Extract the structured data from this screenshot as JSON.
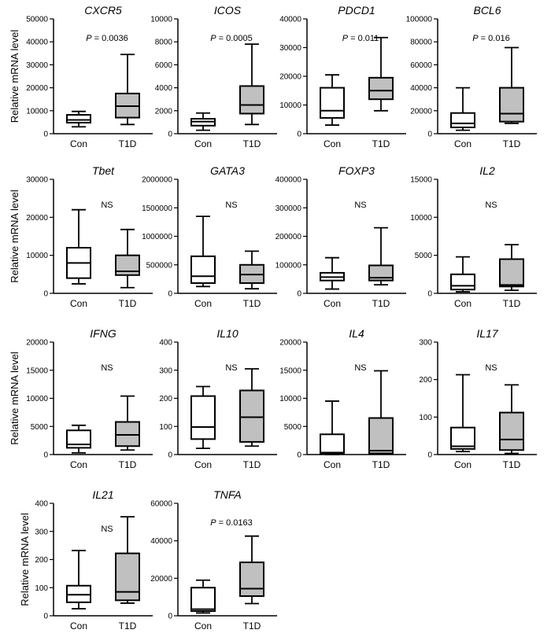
{
  "figure": {
    "ylabel": "Relative mRNA level",
    "colors": {
      "con_fill": "#ffffff",
      "t1d_fill": "#c0c0c0",
      "stroke": "#000000"
    }
  },
  "chart_data": [
    {
      "type": "boxplot",
      "title": "CXCR5",
      "categories": [
        "Con",
        "T1D"
      ],
      "ylim": [
        0,
        50000
      ],
      "yticks": [
        "0",
        "10000",
        "20000",
        "30000",
        "40000",
        "50000"
      ],
      "annotation": "P = 0.0036",
      "series": [
        {
          "name": "Con",
          "min": 3000,
          "q1": 4800,
          "median": 6000,
          "q3": 8200,
          "max": 9700
        },
        {
          "name": "T1D",
          "min": 4000,
          "q1": 7000,
          "median": 12000,
          "q3": 17500,
          "max": 34500
        }
      ]
    },
    {
      "type": "boxplot",
      "title": "ICOS",
      "categories": [
        "Con",
        "T1D"
      ],
      "ylim": [
        0,
        10000
      ],
      "yticks": [
        "0",
        "2000",
        "4000",
        "6000",
        "8000",
        "10000"
      ],
      "annotation": "P = 0.0005",
      "series": [
        {
          "name": "Con",
          "min": 300,
          "q1": 700,
          "median": 1050,
          "q3": 1300,
          "max": 1800
        },
        {
          "name": "T1D",
          "min": 800,
          "q1": 1750,
          "median": 2500,
          "q3": 4150,
          "max": 7800
        }
      ]
    },
    {
      "type": "boxplot",
      "title": "PDCD1",
      "categories": [
        "Con",
        "T1D"
      ],
      "ylim": [
        0,
        40000
      ],
      "yticks": [
        "0",
        "10000",
        "20000",
        "30000",
        "40000"
      ],
      "annotation": "P = 0.011",
      "series": [
        {
          "name": "Con",
          "min": 3000,
          "q1": 5500,
          "median": 8000,
          "q3": 16000,
          "max": 20500
        },
        {
          "name": "T1D",
          "min": 8000,
          "q1": 12000,
          "median": 15000,
          "q3": 19500,
          "max": 33500
        }
      ]
    },
    {
      "type": "boxplot",
      "title": "BCL6",
      "categories": [
        "Con",
        "T1D"
      ],
      "ylim": [
        0,
        100000
      ],
      "yticks": [
        "0",
        "20000",
        "40000",
        "60000",
        "80000",
        "100000"
      ],
      "annotation": "P = 0.016",
      "series": [
        {
          "name": "Con",
          "min": 3000,
          "q1": 5500,
          "median": 9000,
          "q3": 18000,
          "max": 40000
        },
        {
          "name": "T1D",
          "min": 9000,
          "q1": 10500,
          "median": 17500,
          "q3": 40000,
          "max": 75000
        }
      ]
    },
    {
      "type": "boxplot",
      "title": "Tbet",
      "categories": [
        "Con",
        "T1D"
      ],
      "ylim": [
        0,
        30000
      ],
      "yticks": [
        "0",
        "10000",
        "20000",
        "30000"
      ],
      "annotation": "NS",
      "series": [
        {
          "name": "Con",
          "min": 2500,
          "q1": 4000,
          "median": 8000,
          "q3": 12000,
          "max": 22000
        },
        {
          "name": "T1D",
          "min": 1500,
          "q1": 4800,
          "median": 5800,
          "q3": 10000,
          "max": 16800
        }
      ]
    },
    {
      "type": "boxplot",
      "title": "GATA3",
      "categories": [
        "Con",
        "T1D"
      ],
      "ylim": [
        0,
        2000000
      ],
      "yticks": [
        "0",
        "500000",
        "1000000",
        "1500000",
        "2000000"
      ],
      "annotation": "NS",
      "series": [
        {
          "name": "Con",
          "min": 120000,
          "q1": 180000,
          "median": 300000,
          "q3": 650000,
          "max": 1350000
        },
        {
          "name": "T1D",
          "min": 80000,
          "q1": 180000,
          "median": 330000,
          "q3": 500000,
          "max": 740000
        }
      ]
    },
    {
      "type": "boxplot",
      "title": "FOXP3",
      "categories": [
        "Con",
        "T1D"
      ],
      "ylim": [
        0,
        400000
      ],
      "yticks": [
        "0",
        "100000",
        "200000",
        "300000",
        "400000"
      ],
      "annotation": "NS",
      "series": [
        {
          "name": "Con",
          "min": 15000,
          "q1": 45000,
          "median": 57000,
          "q3": 72000,
          "max": 125000
        },
        {
          "name": "T1D",
          "min": 30000,
          "q1": 45000,
          "median": 55000,
          "q3": 98000,
          "max": 230000
        }
      ]
    },
    {
      "type": "boxplot",
      "title": "IL2",
      "categories": [
        "Con",
        "T1D"
      ],
      "ylim": [
        0,
        15000
      ],
      "yticks": [
        "0",
        "5000",
        "10000",
        "15000"
      ],
      "annotation": "NS",
      "series": [
        {
          "name": "Con",
          "min": 200,
          "q1": 500,
          "median": 1000,
          "q3": 2500,
          "max": 4800
        },
        {
          "name": "T1D",
          "min": 400,
          "q1": 900,
          "median": 1100,
          "q3": 4500,
          "max": 6400
        }
      ]
    },
    {
      "type": "boxplot",
      "title": "IFNG",
      "categories": [
        "Con",
        "T1D"
      ],
      "ylim": [
        0,
        20000
      ],
      "yticks": [
        "0",
        "5000",
        "10000",
        "15000",
        "20000"
      ],
      "annotation": "NS",
      "series": [
        {
          "name": "Con",
          "min": 300,
          "q1": 1200,
          "median": 1800,
          "q3": 4300,
          "max": 5200
        },
        {
          "name": "T1D",
          "min": 800,
          "q1": 1500,
          "median": 3500,
          "q3": 5800,
          "max": 10400
        }
      ]
    },
    {
      "type": "boxplot",
      "title": "IL10",
      "categories": [
        "Con",
        "T1D"
      ],
      "ylim": [
        0,
        400
      ],
      "yticks": [
        "0",
        "100",
        "200",
        "300",
        "400"
      ],
      "annotation": "NS",
      "series": [
        {
          "name": "Con",
          "min": 22,
          "q1": 55,
          "median": 98,
          "q3": 208,
          "max": 242
        },
        {
          "name": "T1D",
          "min": 30,
          "q1": 45,
          "median": 133,
          "q3": 228,
          "max": 305
        }
      ]
    },
    {
      "type": "boxplot",
      "title": "IL4",
      "categories": [
        "Con",
        "T1D"
      ],
      "ylim": [
        0,
        20000
      ],
      "yticks": [
        "0",
        "5000",
        "10000",
        "15000",
        "20000"
      ],
      "annotation": "NS",
      "series": [
        {
          "name": "Con",
          "min": 0,
          "q1": 150,
          "median": 350,
          "q3": 3600,
          "max": 9500
        },
        {
          "name": "T1D",
          "min": 50,
          "q1": 200,
          "median": 700,
          "q3": 6500,
          "max": 14900
        }
      ]
    },
    {
      "type": "boxplot",
      "title": "IL17",
      "categories": [
        "Con",
        "T1D"
      ],
      "ylim": [
        0,
        300
      ],
      "yticks": [
        "0",
        "100",
        "200",
        "300"
      ],
      "annotation": "NS",
      "series": [
        {
          "name": "Con",
          "min": 8,
          "q1": 15,
          "median": 22,
          "q3": 72,
          "max": 213
        },
        {
          "name": "T1D",
          "min": 3,
          "q1": 12,
          "median": 40,
          "q3": 112,
          "max": 186
        }
      ]
    },
    {
      "type": "boxplot",
      "title": "IL21",
      "categories": [
        "Con",
        "T1D"
      ],
      "ylim": [
        0,
        400
      ],
      "yticks": [
        "0",
        "100",
        "200",
        "300",
        "400"
      ],
      "annotation": "NS",
      "series": [
        {
          "name": "Con",
          "min": 25,
          "q1": 48,
          "median": 75,
          "q3": 107,
          "max": 232
        },
        {
          "name": "T1D",
          "min": 45,
          "q1": 55,
          "median": 85,
          "q3": 222,
          "max": 352
        }
      ]
    },
    {
      "type": "boxplot",
      "title": "TNFA",
      "categories": [
        "Con",
        "T1D"
      ],
      "ylim": [
        0,
        60000
      ],
      "yticks": [
        "0",
        "20000",
        "40000",
        "60000"
      ],
      "annotation": "P = 0.0163",
      "series": [
        {
          "name": "Con",
          "min": 1500,
          "q1": 2500,
          "median": 3500,
          "q3": 15000,
          "max": 19000
        },
        {
          "name": "T1D",
          "min": 6500,
          "q1": 10500,
          "median": 14500,
          "q3": 28500,
          "max": 42500
        }
      ]
    }
  ]
}
